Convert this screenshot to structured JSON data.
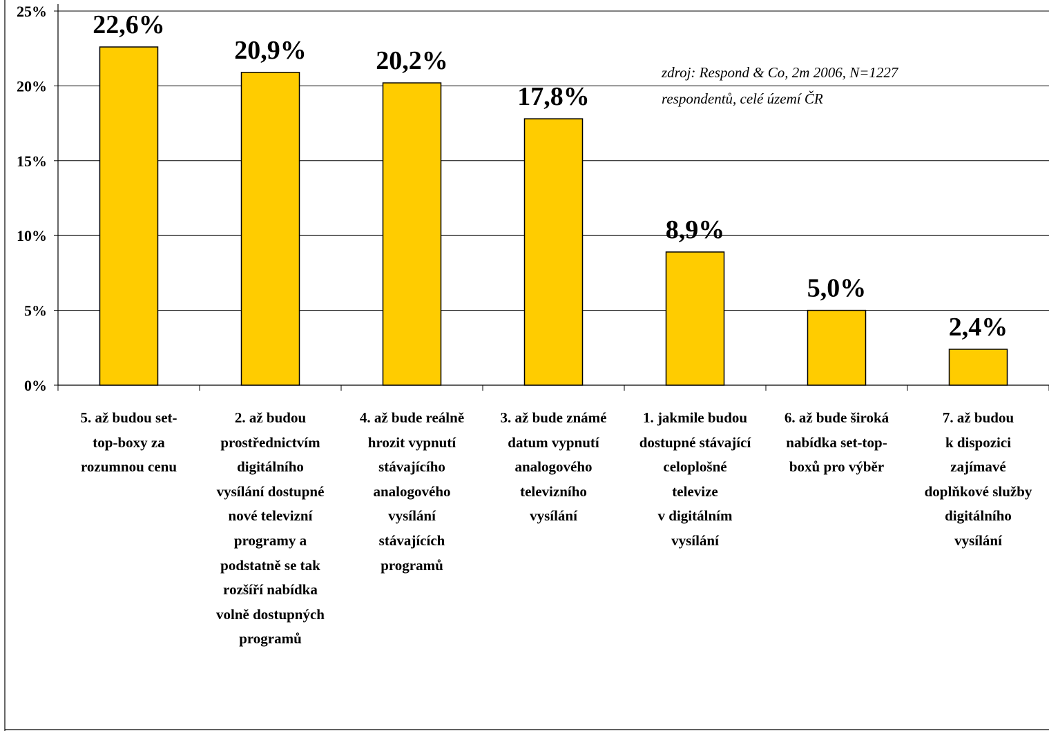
{
  "chart_data": {
    "type": "bar",
    "title": "",
    "categories": [
      "5.  až budou set-\ntop-boxy za\nrozumnou cenu",
      "2.  až budou\nprostřednictvím\ndigitálního\nvysílání dostupné\nnové televizní\nprogramy a\npodstatně se tak\nrozšíří nabídka\nvolně dostupných\nprogramů",
      "4.  až bude reálně\nhrozit vypnutí\nstávajícího\nanalogového\nvysílání\nstávajících\nprogramů",
      "3.  až bude známé\ndatum vypnutí\nanalogového\ntelevizního\nvysílání",
      "1.  jakmile budou\ndostupné stávající\nceloplošné\ntelevize\nv digitálním\nvysílání",
      "6.  až bude široká\nnabídka set-top-\nboxů pro výběr",
      "7.  až budou\nk dispozici\nzajímavé\ndoplňkové služby\ndigitálního\nvysílání"
    ],
    "values": [
      22.6,
      20.9,
      20.2,
      17.8,
      8.9,
      5.0,
      2.4
    ],
    "data_labels": [
      "22,6%",
      "20,9%",
      "20,2%",
      "17,8%",
      "8,9%",
      "5,0%",
      "2,4%"
    ],
    "yticks": [
      0,
      5,
      10,
      15,
      20,
      25
    ],
    "ytick_labels": [
      "0%",
      "5%",
      "10%",
      "15%",
      "20%",
      "25%"
    ],
    "ylim": [
      0,
      25
    ],
    "grid": true,
    "bar_color": "#FFCC00",
    "bar_edge_color": "#000000",
    "annotation": "zdroj: Respond & Co, 2m 2006, N=1227 respondentů, celé území ČR"
  }
}
